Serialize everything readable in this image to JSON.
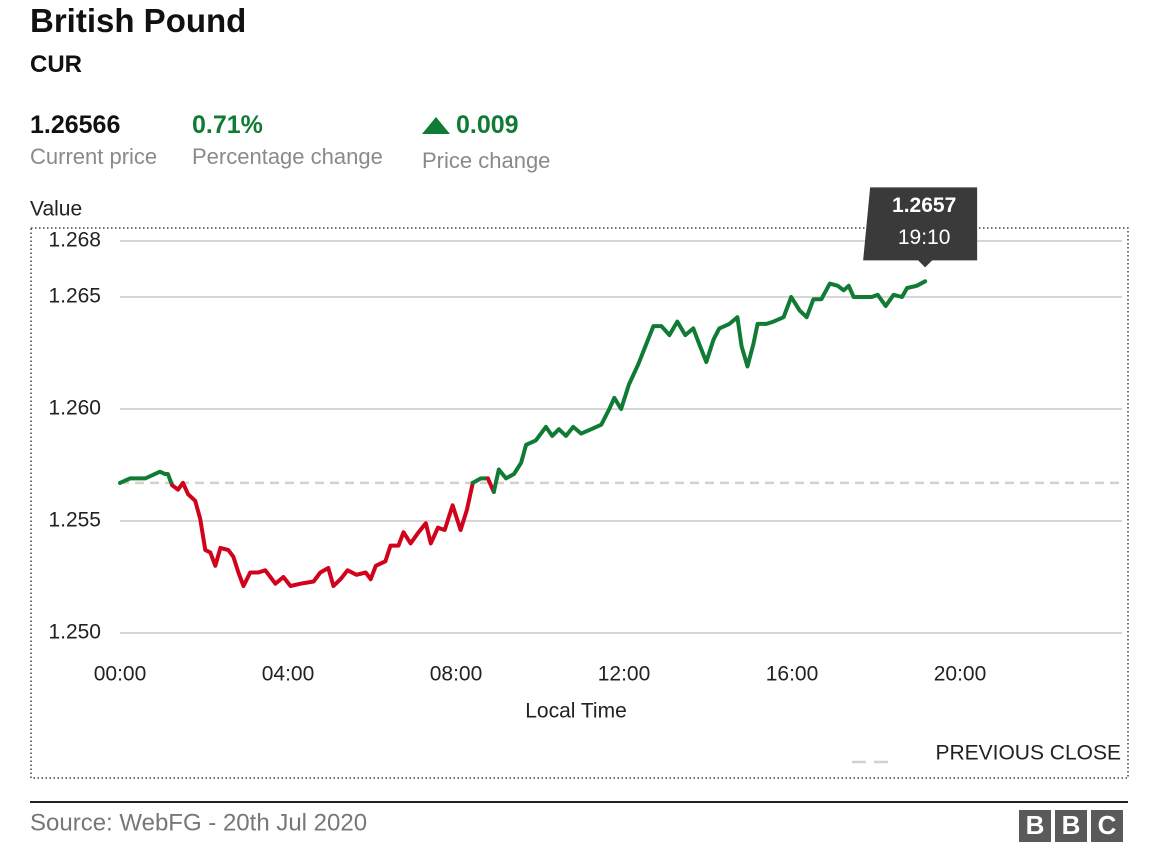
{
  "header": {
    "title": "British Pound",
    "subtitle": "CUR"
  },
  "stats": [
    {
      "value": "1.26566",
      "label": "Current price"
    },
    {
      "value": "0.71%",
      "label": "Percentage change"
    },
    {
      "value": "0.009",
      "label": "Price change"
    }
  ],
  "chart_data": {
    "type": "line",
    "y_label": "Value",
    "x_label": "Local Time",
    "xlim": [
      0,
      24
    ],
    "ylim": [
      1.25,
      1.2675
    ],
    "xticks": [
      {
        "value": 0,
        "label": "00:00"
      },
      {
        "value": 4,
        "label": "04:00"
      },
      {
        "value": 8,
        "label": "08:00"
      },
      {
        "value": 12,
        "label": "12:00"
      },
      {
        "value": 16,
        "label": "16:00"
      },
      {
        "value": 20,
        "label": "20:00"
      }
    ],
    "yticks": [
      {
        "value": 1.25,
        "label": "1.250"
      },
      1.255,
      {
        "value": 1.26,
        "label": "1.260"
      },
      1.265,
      {
        "value": 1.2675,
        "label": "1.268"
      }
    ],
    "grid": true,
    "color_up": "#0f7b34",
    "color_down": "#d1021b",
    "previous_close": {
      "value": 1.2567,
      "label": "PREVIOUS CLOSE",
      "color": "#d8cfcb"
    },
    "tooltip": {
      "value": 1.2657,
      "label": "19:10"
    },
    "x": [
      0,
      0.24,
      0.6,
      0.72,
      0.95,
      1.07,
      1.14,
      1.24,
      1.38,
      1.5,
      1.62,
      1.79,
      1.91,
      2.03,
      2.15,
      2.27,
      2.39,
      2.58,
      2.7,
      2.82,
      2.94,
      3.1,
      3.29,
      3.46,
      3.58,
      3.7,
      3.89,
      4.06,
      4.3,
      4.61,
      4.77,
      4.96,
      5.08,
      5.25,
      5.42,
      5.63,
      5.85,
      5.97,
      6.09,
      6.32,
      6.44,
      6.63,
      6.75,
      6.92,
      7.11,
      7.28,
      7.4,
      7.57,
      7.73,
      7.92,
      8.11,
      8.26,
      8.4,
      8.59,
      8.76,
      8.9,
      9.02,
      9.19,
      9.38,
      9.55,
      9.67,
      9.9,
      10.14,
      10.29,
      10.45,
      10.62,
      10.79,
      10.98,
      11.22,
      11.46,
      11.65,
      11.77,
      11.93,
      12.12,
      12.34,
      12.53,
      12.7,
      12.89,
      13.08,
      13.27,
      13.46,
      13.65,
      13.79,
      13.96,
      14.13,
      14.27,
      14.51,
      14.7,
      14.8,
      14.94,
      15.08,
      15.18,
      15.39,
      15.56,
      15.8,
      15.98,
      16.18,
      16.35,
      16.51,
      16.7,
      16.9,
      17.09,
      17.23,
      17.35,
      17.47,
      17.71,
      17.9,
      18.04,
      18.23,
      18.42,
      18.62,
      18.74,
      18.97,
      19.17
    ],
    "series": [
      {
        "values": [
          1.2567,
          1.2569,
          1.2569,
          1.257,
          1.2572,
          1.2571,
          1.2571,
          1.2566,
          1.2564,
          1.2567,
          1.2562,
          1.2559,
          1.2551,
          1.2537,
          1.2536,
          1.253,
          1.2538,
          1.2537,
          1.2534,
          1.2527,
          1.2521,
          1.2527,
          1.2527,
          1.2528,
          1.2525,
          1.2522,
          1.2525,
          1.2521,
          1.2522,
          1.2523,
          1.2527,
          1.2529,
          1.2521,
          1.2524,
          1.2528,
          1.2526,
          1.2527,
          1.2524,
          1.253,
          1.2532,
          1.2539,
          1.2539,
          1.2545,
          1.254,
          1.2545,
          1.2549,
          1.254,
          1.2547,
          1.2546,
          1.2557,
          1.2546,
          1.2555,
          1.2567,
          1.2569,
          1.2569,
          1.2563,
          1.2573,
          1.2569,
          1.2571,
          1.2576,
          1.2584,
          1.2586,
          1.2592,
          1.2588,
          1.2591,
          1.2588,
          1.2592,
          1.2589,
          1.2591,
          1.2593,
          1.26,
          1.2605,
          1.26,
          1.2611,
          1.262,
          1.2629,
          1.2637,
          1.2637,
          1.2633,
          1.2639,
          1.2633,
          1.2636,
          1.2629,
          1.2621,
          1.2631,
          1.2636,
          1.2638,
          1.2641,
          1.2628,
          1.2619,
          1.2629,
          1.2638,
          1.2638,
          1.2639,
          1.2641,
          1.265,
          1.2644,
          1.2641,
          1.2649,
          1.2649,
          1.2656,
          1.2655,
          1.2653,
          1.2655,
          1.265,
          1.265,
          1.265,
          1.2651,
          1.2646,
          1.2651,
          1.265,
          1.2654,
          1.2655,
          1.2657
        ]
      }
    ]
  },
  "footer": {
    "source": "Source: WebFG - 20th Jul 2020",
    "logo": [
      "B",
      "B",
      "C"
    ]
  }
}
